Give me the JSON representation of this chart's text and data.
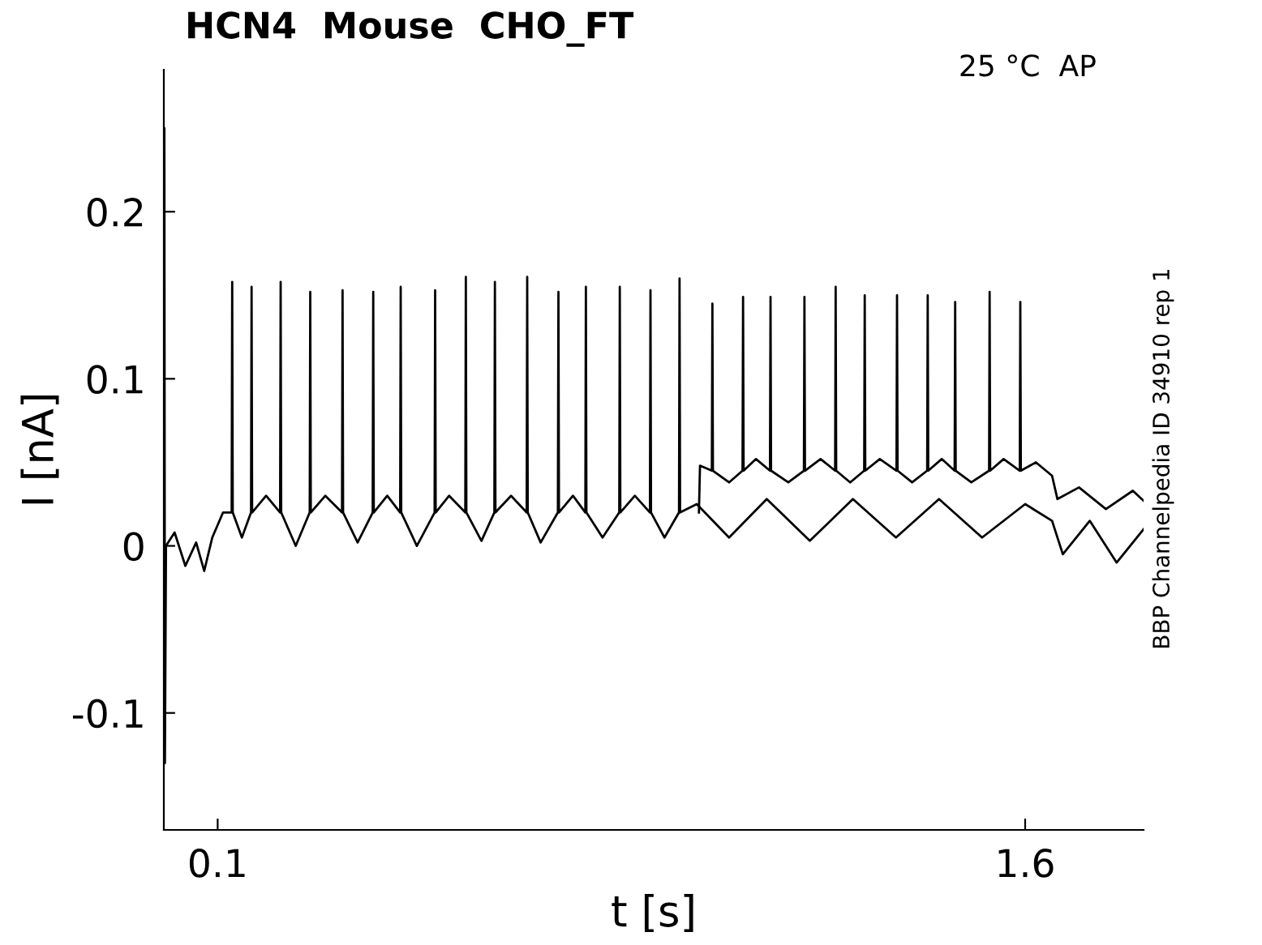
{
  "chart_data": {
    "type": "line",
    "title": "HCN4  Mouse  CHO_FT",
    "xlabel": "t [s]",
    "ylabel": "I [nA]",
    "annotations": [
      "25 °C  AP",
      "BBP Channelpedia ID 34910 rep 1"
    ],
    "xlim": [
      0,
      1.82
    ],
    "ylim": [
      -0.17,
      0.285
    ],
    "xticks": [
      0.1,
      1.6
    ],
    "yticks": [
      {
        "value": -0.1,
        "label": "-0.1"
      },
      0,
      0.1,
      0.2
    ],
    "series": [
      {
        "color": "#000000",
        "x": [
          0,
          0.001,
          0.002,
          0.004,
          0.02,
          0.04,
          0.06,
          0.075,
          0.09,
          0.11,
          0.126,
          0.127,
          0.128,
          0.145,
          0.162,
          0.163,
          0.164,
          0.19,
          0.216,
          0.217,
          0.218,
          0.245,
          0.271,
          0.272,
          0.273,
          0.3,
          0.331,
          0.332,
          0.333,
          0.36,
          0.388,
          0.389,
          0.39,
          0.415,
          0.439,
          0.44,
          0.441,
          0.47,
          0.503,
          0.504,
          0.505,
          0.53,
          0.56,
          0.561,
          0.562,
          0.59,
          0.614,
          0.615,
          0.616,
          0.645,
          0.674,
          0.675,
          0.676,
          0.7,
          0.732,
          0.733,
          0.734,
          0.76,
          0.783,
          0.784,
          0.785,
          0.815,
          0.846,
          0.847,
          0.848,
          0.875,
          0.903,
          0.904,
          0.905,
          0.93,
          0.957,
          0.958,
          0.959,
          0.99,
          1.05,
          1.12,
          1.2,
          1.28,
          1.36,
          1.44,
          1.52,
          1.6,
          1.65,
          1.67,
          1.72,
          1.77,
          1.82
        ],
        "values": [
          0.01,
          0.25,
          -0.13,
          0.0,
          0.008,
          -0.012,
          0.002,
          -0.015,
          0.005,
          0.02,
          0.02,
          0.158,
          0.02,
          0.005,
          0.02,
          0.155,
          0.02,
          0.03,
          0.02,
          0.158,
          0.02,
          0.0,
          0.02,
          0.152,
          0.02,
          0.03,
          0.02,
          0.153,
          0.02,
          0.002,
          0.02,
          0.152,
          0.02,
          0.03,
          0.02,
          0.155,
          0.02,
          0.0,
          0.02,
          0.153,
          0.02,
          0.03,
          0.02,
          0.161,
          0.02,
          0.003,
          0.02,
          0.158,
          0.02,
          0.03,
          0.02,
          0.161,
          0.02,
          0.002,
          0.02,
          0.152,
          0.02,
          0.03,
          0.02,
          0.155,
          0.02,
          0.005,
          0.02,
          0.155,
          0.02,
          0.03,
          0.02,
          0.153,
          0.02,
          0.005,
          0.02,
          0.16,
          0.02,
          0.025,
          0.005,
          0.028,
          0.003,
          0.028,
          0.005,
          0.028,
          0.005,
          0.025,
          0.015,
          -0.005,
          0.015,
          -0.01,
          0.01
        ]
      },
      {
        "color": "#000000",
        "x": [
          0.994,
          0.996,
          1.018,
          1.019,
          1.02,
          1.05,
          1.075,
          1.076,
          1.077,
          1.1,
          1.126,
          1.127,
          1.128,
          1.16,
          1.189,
          1.19,
          1.191,
          1.22,
          1.247,
          1.248,
          1.249,
          1.275,
          1.301,
          1.302,
          1.303,
          1.33,
          1.361,
          1.362,
          1.363,
          1.39,
          1.418,
          1.419,
          1.42,
          1.445,
          1.469,
          1.47,
          1.471,
          1.5,
          1.533,
          1.534,
          1.535,
          1.56,
          1.59,
          1.591,
          1.592,
          1.62,
          1.65,
          1.66,
          1.7,
          1.75,
          1.8,
          1.82
        ],
        "values": [
          0.02,
          0.048,
          0.045,
          0.145,
          0.045,
          0.038,
          0.045,
          0.149,
          0.045,
          0.052,
          0.045,
          0.149,
          0.045,
          0.038,
          0.045,
          0.149,
          0.045,
          0.052,
          0.045,
          0.155,
          0.045,
          0.038,
          0.045,
          0.15,
          0.045,
          0.052,
          0.045,
          0.15,
          0.045,
          0.038,
          0.045,
          0.15,
          0.045,
          0.052,
          0.045,
          0.146,
          0.045,
          0.038,
          0.045,
          0.152,
          0.045,
          0.052,
          0.045,
          0.146,
          0.045,
          0.05,
          0.042,
          0.028,
          0.035,
          0.022,
          0.033,
          0.027
        ]
      }
    ]
  }
}
